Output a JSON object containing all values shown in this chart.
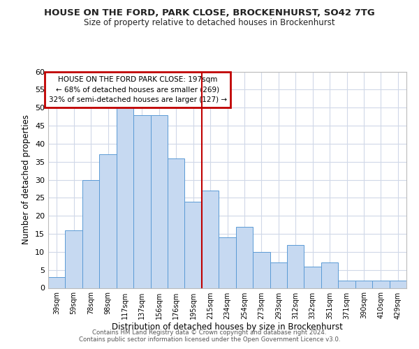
{
  "title": "HOUSE ON THE FORD, PARK CLOSE, BROCKENHURST, SO42 7TG",
  "subtitle": "Size of property relative to detached houses in Brockenhurst",
  "xlabel": "Distribution of detached houses by size in Brockenhurst",
  "ylabel": "Number of detached properties",
  "bar_labels": [
    "39sqm",
    "59sqm",
    "78sqm",
    "98sqm",
    "117sqm",
    "137sqm",
    "156sqm",
    "176sqm",
    "195sqm",
    "215sqm",
    "234sqm",
    "254sqm",
    "273sqm",
    "293sqm",
    "312sqm",
    "332sqm",
    "351sqm",
    "371sqm",
    "390sqm",
    "410sqm",
    "429sqm"
  ],
  "bar_values": [
    3,
    16,
    30,
    37,
    50,
    48,
    48,
    36,
    24,
    27,
    14,
    17,
    10,
    7,
    12,
    6,
    7,
    2,
    2,
    2,
    2
  ],
  "bar_color": "#c6d9f1",
  "bar_edge_color": "#5b9bd5",
  "vline_color": "#c00000",
  "ylim": [
    0,
    60
  ],
  "yticks": [
    0,
    5,
    10,
    15,
    20,
    25,
    30,
    35,
    40,
    45,
    50,
    55,
    60
  ],
  "annotation_title": "HOUSE ON THE FORD PARK CLOSE: 197sqm",
  "annotation_line1": "← 68% of detached houses are smaller (269)",
  "annotation_line2": "32% of semi-detached houses are larger (127) →",
  "annotation_box_color": "#c00000",
  "footer_line1": "Contains HM Land Registry data © Crown copyright and database right 2024.",
  "footer_line2": "Contains public sector information licensed under the Open Government Licence v3.0.",
  "background_color": "#ffffff",
  "grid_color": "#d0d8e8"
}
